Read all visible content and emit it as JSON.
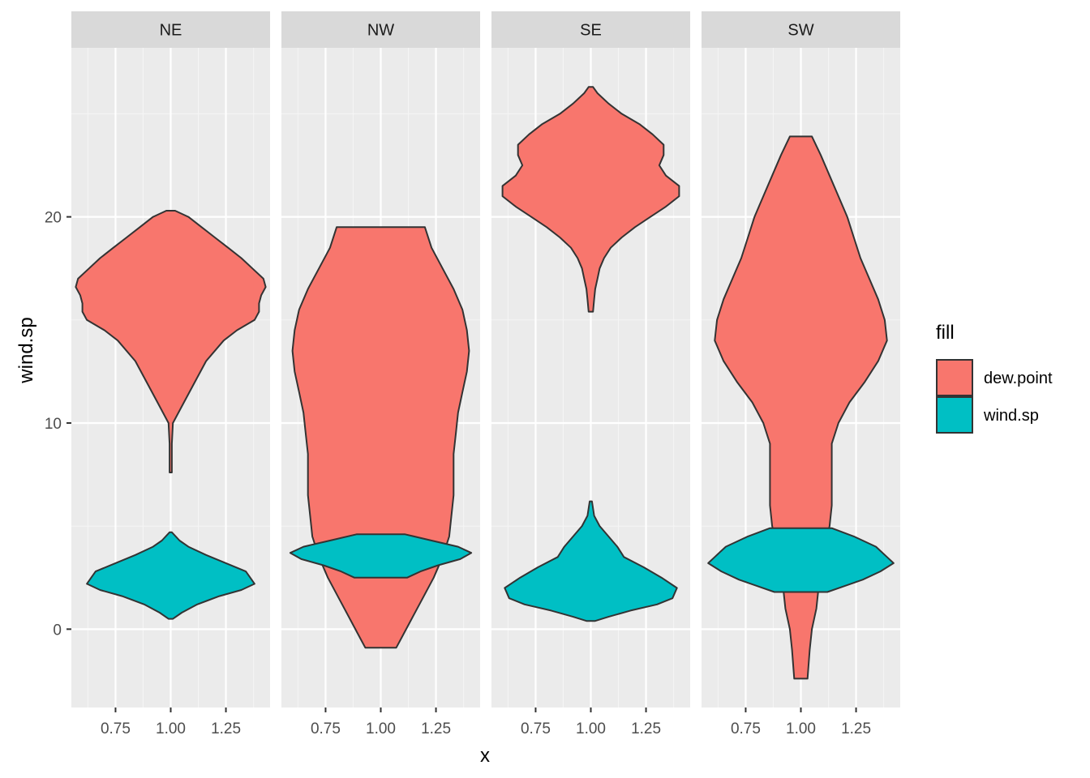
{
  "chart_data": {
    "type": "violin",
    "facets": [
      "NE",
      "NW",
      "SE",
      "SW"
    ],
    "xlabel": "x",
    "ylabel": "wind.sp",
    "x_ticks": [
      "0.75",
      "1.00",
      "1.25"
    ],
    "x_tick_values": [
      0.75,
      1.0,
      1.25
    ],
    "xlim": [
      0.55,
      1.45
    ],
    "y_ticks": [
      "0",
      "10",
      "20"
    ],
    "y_tick_values": [
      0,
      10,
      20
    ],
    "ylim": [
      -3.8,
      28.2
    ],
    "grid": true,
    "legend": {
      "title": "fill",
      "position": "right",
      "items": [
        {
          "label": "dew.point",
          "color": "#F8766D"
        },
        {
          "label": "wind.sp",
          "color": "#00BFC4"
        }
      ]
    },
    "series": [
      {
        "name": "dew.point",
        "color": "#F8766D",
        "violins": {
          "NE": [
            [
              20.3,
              0.02
            ],
            [
              20.0,
              0.08
            ],
            [
              19.5,
              0.14
            ],
            [
              19.0,
              0.2
            ],
            [
              18.5,
              0.26
            ],
            [
              18.0,
              0.32
            ],
            [
              17.5,
              0.37
            ],
            [
              17.0,
              0.42
            ],
            [
              16.6,
              0.43
            ],
            [
              16.2,
              0.41
            ],
            [
              15.8,
              0.4
            ],
            [
              15.4,
              0.4
            ],
            [
              15.0,
              0.38
            ],
            [
              14.5,
              0.3
            ],
            [
              14.0,
              0.24
            ],
            [
              13.0,
              0.16
            ],
            [
              12.0,
              0.11
            ],
            [
              11.0,
              0.06
            ],
            [
              10.0,
              0.01
            ],
            [
              9.0,
              0.005
            ],
            [
              8.0,
              0.005
            ],
            [
              7.6,
              0.005
            ]
          ],
          "NW": [
            [
              19.5,
              0.2
            ],
            [
              18.5,
              0.23
            ],
            [
              17.5,
              0.28
            ],
            [
              16.5,
              0.33
            ],
            [
              15.5,
              0.37
            ],
            [
              14.5,
              0.39
            ],
            [
              13.5,
              0.4
            ],
            [
              12.5,
              0.39
            ],
            [
              11.5,
              0.37
            ],
            [
              10.5,
              0.35
            ],
            [
              9.5,
              0.34
            ],
            [
              8.5,
              0.33
            ],
            [
              7.5,
              0.33
            ],
            [
              6.5,
              0.33
            ],
            [
              5.5,
              0.32
            ],
            [
              4.5,
              0.31
            ],
            [
              3.5,
              0.28
            ],
            [
              2.5,
              0.24
            ],
            [
              1.5,
              0.19
            ],
            [
              0.5,
              0.14
            ],
            [
              -0.5,
              0.09
            ],
            [
              -0.9,
              0.07
            ]
          ],
          "SE": [
            [
              26.3,
              0.01
            ],
            [
              26.0,
              0.03
            ],
            [
              25.5,
              0.08
            ],
            [
              25.0,
              0.14
            ],
            [
              24.5,
              0.22
            ],
            [
              24.0,
              0.28
            ],
            [
              23.5,
              0.33
            ],
            [
              23.0,
              0.33
            ],
            [
              22.5,
              0.31
            ],
            [
              22.0,
              0.34
            ],
            [
              21.5,
              0.4
            ],
            [
              21.0,
              0.4
            ],
            [
              20.5,
              0.34
            ],
            [
              20.0,
              0.27
            ],
            [
              19.5,
              0.2
            ],
            [
              19.0,
              0.14
            ],
            [
              18.5,
              0.09
            ],
            [
              18.0,
              0.06
            ],
            [
              17.5,
              0.04
            ],
            [
              17.0,
              0.03
            ],
            [
              16.5,
              0.02
            ],
            [
              16.0,
              0.015
            ],
            [
              15.4,
              0.01
            ]
          ],
          "SW": [
            [
              23.9,
              0.05
            ],
            [
              23.0,
              0.09
            ],
            [
              22.0,
              0.13
            ],
            [
              21.0,
              0.17
            ],
            [
              20.0,
              0.21
            ],
            [
              19.0,
              0.24
            ],
            [
              18.0,
              0.27
            ],
            [
              17.0,
              0.31
            ],
            [
              16.0,
              0.35
            ],
            [
              15.0,
              0.38
            ],
            [
              14.0,
              0.39
            ],
            [
              13.0,
              0.35
            ],
            [
              12.0,
              0.29
            ],
            [
              11.0,
              0.22
            ],
            [
              10.0,
              0.17
            ],
            [
              9.0,
              0.14
            ],
            [
              8.0,
              0.14
            ],
            [
              7.0,
              0.14
            ],
            [
              6.0,
              0.14
            ],
            [
              5.0,
              0.13
            ],
            [
              4.0,
              0.11
            ],
            [
              3.0,
              0.1
            ],
            [
              2.0,
              0.08
            ],
            [
              1.0,
              0.07
            ],
            [
              0.0,
              0.05
            ],
            [
              -1.0,
              0.04
            ],
            [
              -2.4,
              0.03
            ]
          ]
        }
      },
      {
        "name": "wind.sp",
        "color": "#00BFC4",
        "violins": {
          "NE": [
            [
              4.7,
              0.005
            ],
            [
              4.3,
              0.04
            ],
            [
              4.0,
              0.08
            ],
            [
              3.6,
              0.16
            ],
            [
              3.2,
              0.25
            ],
            [
              2.8,
              0.34
            ],
            [
              2.5,
              0.36
            ],
            [
              2.2,
              0.38
            ],
            [
              1.9,
              0.32
            ],
            [
              1.6,
              0.22
            ],
            [
              1.2,
              0.12
            ],
            [
              0.8,
              0.05
            ],
            [
              0.5,
              0.01
            ]
          ],
          "NW": [
            [
              4.6,
              0.11
            ],
            [
              4.3,
              0.23
            ],
            [
              4.0,
              0.35
            ],
            [
              3.7,
              0.41
            ],
            [
              3.4,
              0.36
            ],
            [
              3.1,
              0.26
            ],
            [
              2.8,
              0.18
            ],
            [
              2.5,
              0.12
            ]
          ],
          "SE": [
            [
              6.2,
              0.005
            ],
            [
              5.5,
              0.015
            ],
            [
              5.0,
              0.04
            ],
            [
              4.5,
              0.08
            ],
            [
              4.0,
              0.12
            ],
            [
              3.5,
              0.15
            ],
            [
              3.0,
              0.24
            ],
            [
              2.5,
              0.32
            ],
            [
              2.0,
              0.39
            ],
            [
              1.5,
              0.37
            ],
            [
              1.2,
              0.3
            ],
            [
              0.9,
              0.18
            ],
            [
              0.6,
              0.08
            ],
            [
              0.4,
              0.02
            ]
          ],
          "SW": [
            [
              4.9,
              0.14
            ],
            [
              4.5,
              0.24
            ],
            [
              4.0,
              0.34
            ],
            [
              3.5,
              0.39
            ],
            [
              3.2,
              0.42
            ],
            [
              2.8,
              0.36
            ],
            [
              2.4,
              0.28
            ],
            [
              2.1,
              0.2
            ],
            [
              1.8,
              0.12
            ]
          ]
        }
      }
    ]
  }
}
